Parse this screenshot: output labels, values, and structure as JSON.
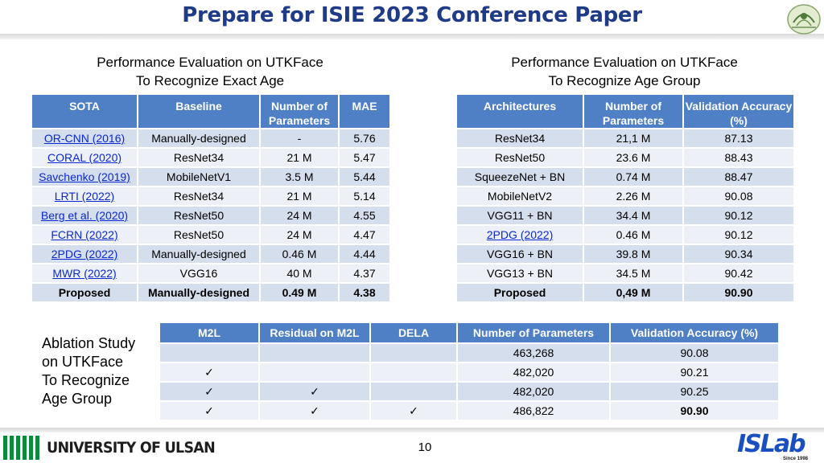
{
  "title": "Prepare for ISIE 2023 Conference Paper",
  "left_section": {
    "subtitle_line1": "Performance Evaluation on UTKFace",
    "subtitle_line2": "To Recognize Exact Age",
    "headers": [
      "SOTA",
      "Baseline",
      "Number of Parameters",
      "MAE"
    ],
    "rows": [
      {
        "sota": "OR-CNN (2016)",
        "baseline": "Manually-designed",
        "params": "-",
        "mae": "5.76"
      },
      {
        "sota": "CORAL (2020)",
        "baseline": "ResNet34",
        "params": "21 M",
        "mae": "5.47"
      },
      {
        "sota": "Savchenko (2019)",
        "baseline": "MobileNetV1",
        "params": "3.5 M",
        "mae": "5.44"
      },
      {
        "sota": "LRTI (2022)",
        "baseline": "ResNet34",
        "params": "21 M",
        "mae": "5.14"
      },
      {
        "sota": "Berg et al. (2020)",
        "baseline": "ResNet50",
        "params": "24 M",
        "mae": "4.55"
      },
      {
        "sota": "FCRN (2022)",
        "baseline": "ResNet50",
        "params": "24 M",
        "mae": "4.47"
      },
      {
        "sota": "2PDG (2022)",
        "baseline": "Manually-designed",
        "params": "0.46 M",
        "mae": "4.44"
      },
      {
        "sota": "MWR (2022)",
        "baseline": "VGG16",
        "params": "40 M",
        "mae": "4.37"
      },
      {
        "sota": "Proposed",
        "baseline": "Manually-designed",
        "params": "0.49 M",
        "mae": "4.38"
      }
    ]
  },
  "right_section": {
    "subtitle_line1": "Performance Evaluation on UTKFace",
    "subtitle_line2": "To Recognize Age Group",
    "headers": [
      "Architectures",
      "Number of Parameters",
      "Validation Accuracy  (%)"
    ],
    "rows": [
      {
        "arch": "ResNet34",
        "params": "21,1 M",
        "acc": "87.13"
      },
      {
        "arch": "ResNet50",
        "params": "23.6 M",
        "acc": "88.43"
      },
      {
        "arch": "SqueezeNet + BN",
        "params": "0.74 M",
        "acc": "88.47"
      },
      {
        "arch": "MobileNetV2",
        "params": "2.26 M",
        "acc": "90.08"
      },
      {
        "arch": "VGG11 + BN",
        "params": "34.4 M",
        "acc": "90.12"
      },
      {
        "arch": "2PDG (2022)",
        "params": "0.46 M",
        "acc": "90.12"
      },
      {
        "arch": "VGG16 + BN",
        "params": "39.8 M",
        "acc": "90.34"
      },
      {
        "arch": "VGG13 + BN",
        "params": "34.5 M",
        "acc": "90.42"
      },
      {
        "arch": "Proposed",
        "params": "0,49 M",
        "acc": "90.90"
      }
    ]
  },
  "ablation": {
    "label_lines": [
      "Ablation Study",
      "on UTKFace",
      "To Recognize",
      "Age Group"
    ],
    "headers": [
      "M2L",
      "Residual on M2L",
      "DELA",
      "Number of Parameters",
      "Validation Accuracy  (%)"
    ],
    "rows": [
      {
        "m2l": "",
        "residual": "",
        "dela": "",
        "params": "463,268",
        "acc": "90.08"
      },
      {
        "m2l": "✓",
        "residual": "",
        "dela": "",
        "params": "482,020",
        "acc": "90.21"
      },
      {
        "m2l": "✓",
        "residual": "✓",
        "dela": "",
        "params": "482,020",
        "acc": "90.25"
      },
      {
        "m2l": "✓",
        "residual": "✓",
        "dela": "✓",
        "params": "486,822",
        "acc": "90.90"
      }
    ]
  },
  "footer": {
    "university": "UNIVERSITY OF ULSAN",
    "page_number": "10",
    "lab_logo": "ISLab",
    "lab_since": "Since 1998"
  },
  "colors": {
    "title": "#1f3a86",
    "header_bg": "#4f7fc5",
    "row_odd": "#d4deec",
    "row_even": "#edf1f7",
    "link": "#0b28d0"
  }
}
